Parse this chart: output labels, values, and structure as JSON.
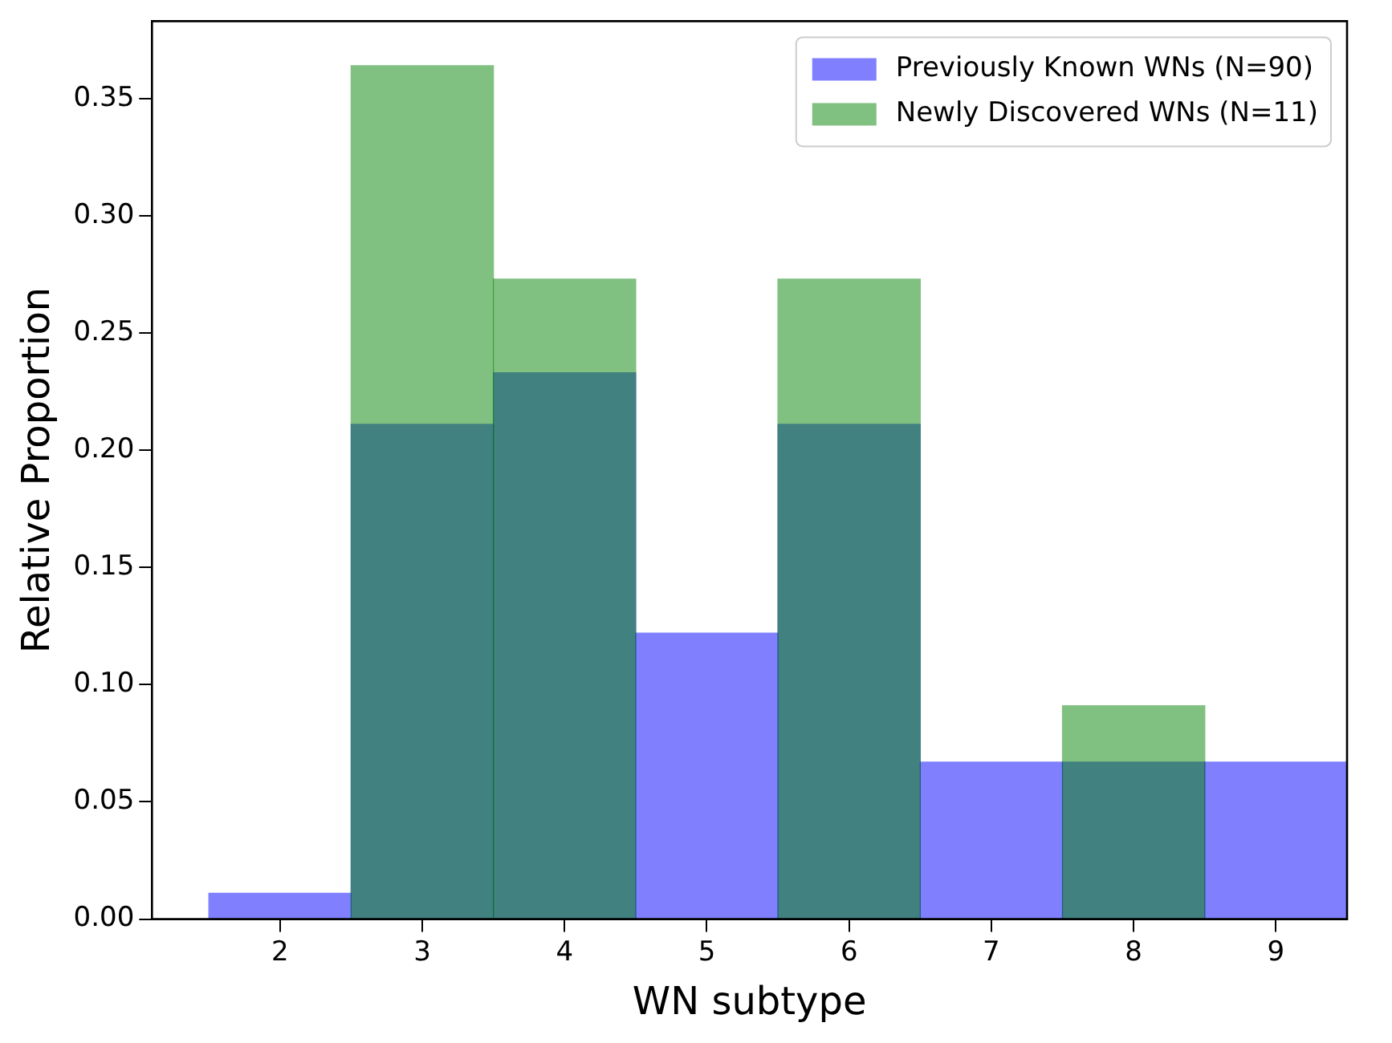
{
  "chart_data": {
    "type": "histogram",
    "xlabel": "WN subtype",
    "ylabel": "Relative Proportion",
    "bins": [
      1.5,
      2.5,
      3.5,
      4.5,
      5.5,
      6.5,
      7.5,
      8.5,
      9.5
    ],
    "series": [
      {
        "name": "Previously Known WNs (N=90)",
        "color": "#8080ff",
        "values": [
          0.011,
          0.211,
          0.233,
          0.122,
          0.211,
          0.067,
          0.067,
          0.067
        ]
      },
      {
        "name": "Newly Discovered WNs (N=11)",
        "color": "#80c080",
        "values": [
          0,
          0.364,
          0.273,
          0,
          0.273,
          0,
          0.091,
          0
        ]
      }
    ],
    "xlim": [
      1.1,
      9.5
    ],
    "xticks": [
      2,
      3,
      4,
      5,
      6,
      7,
      8,
      9
    ],
    "ylim": [
      0,
      0.383
    ],
    "yticks": [
      {
        "value": 0,
        "label": "0.00"
      },
      {
        "value": 0.05,
        "label": "0.05"
      },
      {
        "value": 0.1,
        "label": "0.10"
      },
      {
        "value": 0.15,
        "label": "0.15"
      },
      {
        "value": 0.2,
        "label": "0.20"
      },
      {
        "value": 0.25,
        "label": "0.25"
      },
      {
        "value": 0.3,
        "label": "0.30"
      },
      {
        "value": 0.35,
        "label": "0.35"
      }
    ],
    "grid": false,
    "legend": "top right"
  }
}
